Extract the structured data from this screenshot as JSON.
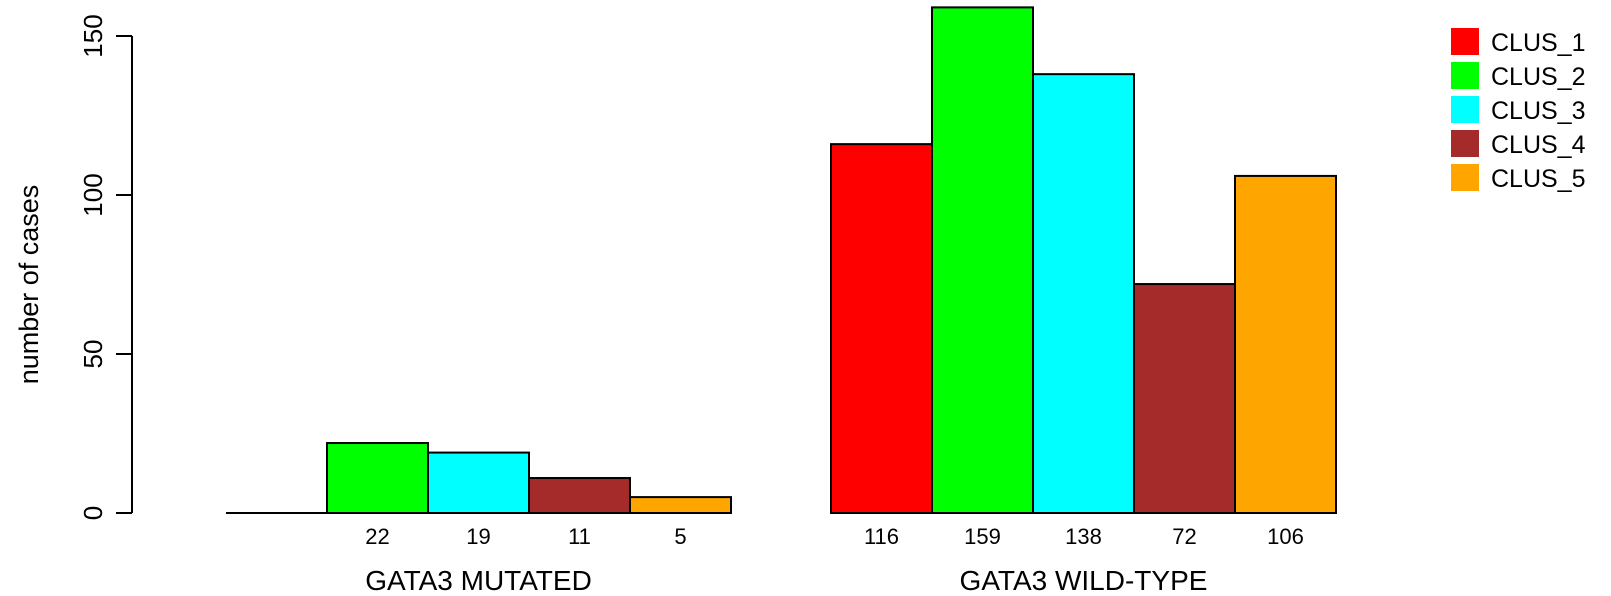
{
  "chart_data": {
    "type": "bar",
    "title": "",
    "xlabel": "",
    "ylabel": "number of cases",
    "ylim": [
      0,
      150
    ],
    "yticks": [
      0,
      50,
      100,
      150
    ],
    "grid": false,
    "legend_position": "top-right",
    "groups": [
      {
        "name": "GATA3 MUTATED",
        "values": [
          0,
          22,
          19,
          11,
          5
        ],
        "labels": [
          "",
          "22",
          "19",
          "11",
          "5"
        ]
      },
      {
        "name": "GATA3 WILD-TYPE",
        "values": [
          116,
          159,
          138,
          72,
          106
        ],
        "labels": [
          "116",
          "159",
          "138",
          "72",
          "106"
        ]
      }
    ],
    "series": [
      {
        "name": "CLUS_1",
        "color": "#ff0000"
      },
      {
        "name": "CLUS_2",
        "color": "#00ff00"
      },
      {
        "name": "CLUS_3",
        "color": "#00ffff"
      },
      {
        "name": "CLUS_4",
        "color": "#a52a2a"
      },
      {
        "name": "CLUS_5",
        "color": "#ffa500"
      }
    ]
  }
}
